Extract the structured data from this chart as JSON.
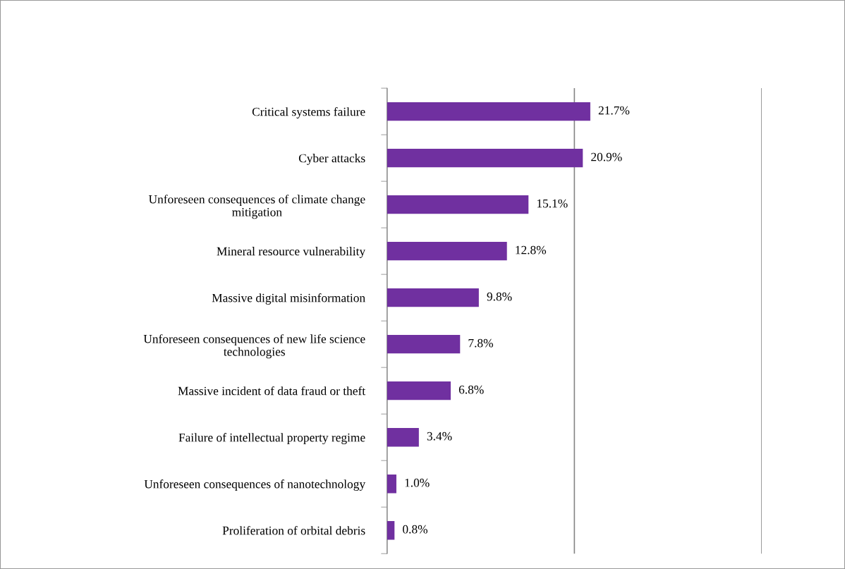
{
  "chart_data": {
    "type": "bar",
    "orientation": "horizontal",
    "categories": [
      "Critical systems failure",
      "Cyber attacks",
      "Unforeseen consequences of climate change\nmitigation",
      "Mineral resource vulnerability",
      "Massive digital misinformation",
      "Unforeseen consequences of new life science\ntechnologies",
      "Massive incident of data fraud or theft",
      "Failure of intellectual property regime",
      "Unforeseen consequences of nanotechnology",
      "Proliferation of orbital debris"
    ],
    "values": [
      21.7,
      20.9,
      15.1,
      12.8,
      9.8,
      7.8,
      6.8,
      3.4,
      1.0,
      0.8
    ],
    "value_labels": [
      "21.7%",
      "20.9%",
      "15.1%",
      "12.8%",
      "9.8%",
      "7.8%",
      "6.8%",
      "3.4%",
      "1.0%",
      "0.8%"
    ],
    "color": "#7030a0",
    "xlim": [
      0,
      40
    ],
    "xticks": [
      {
        "value": 0,
        "label": null
      },
      {
        "value": 20,
        "label": null
      },
      {
        "value": 40,
        "label": null
      }
    ],
    "grid": "x",
    "tick_labels": "y",
    "legend": false
  }
}
